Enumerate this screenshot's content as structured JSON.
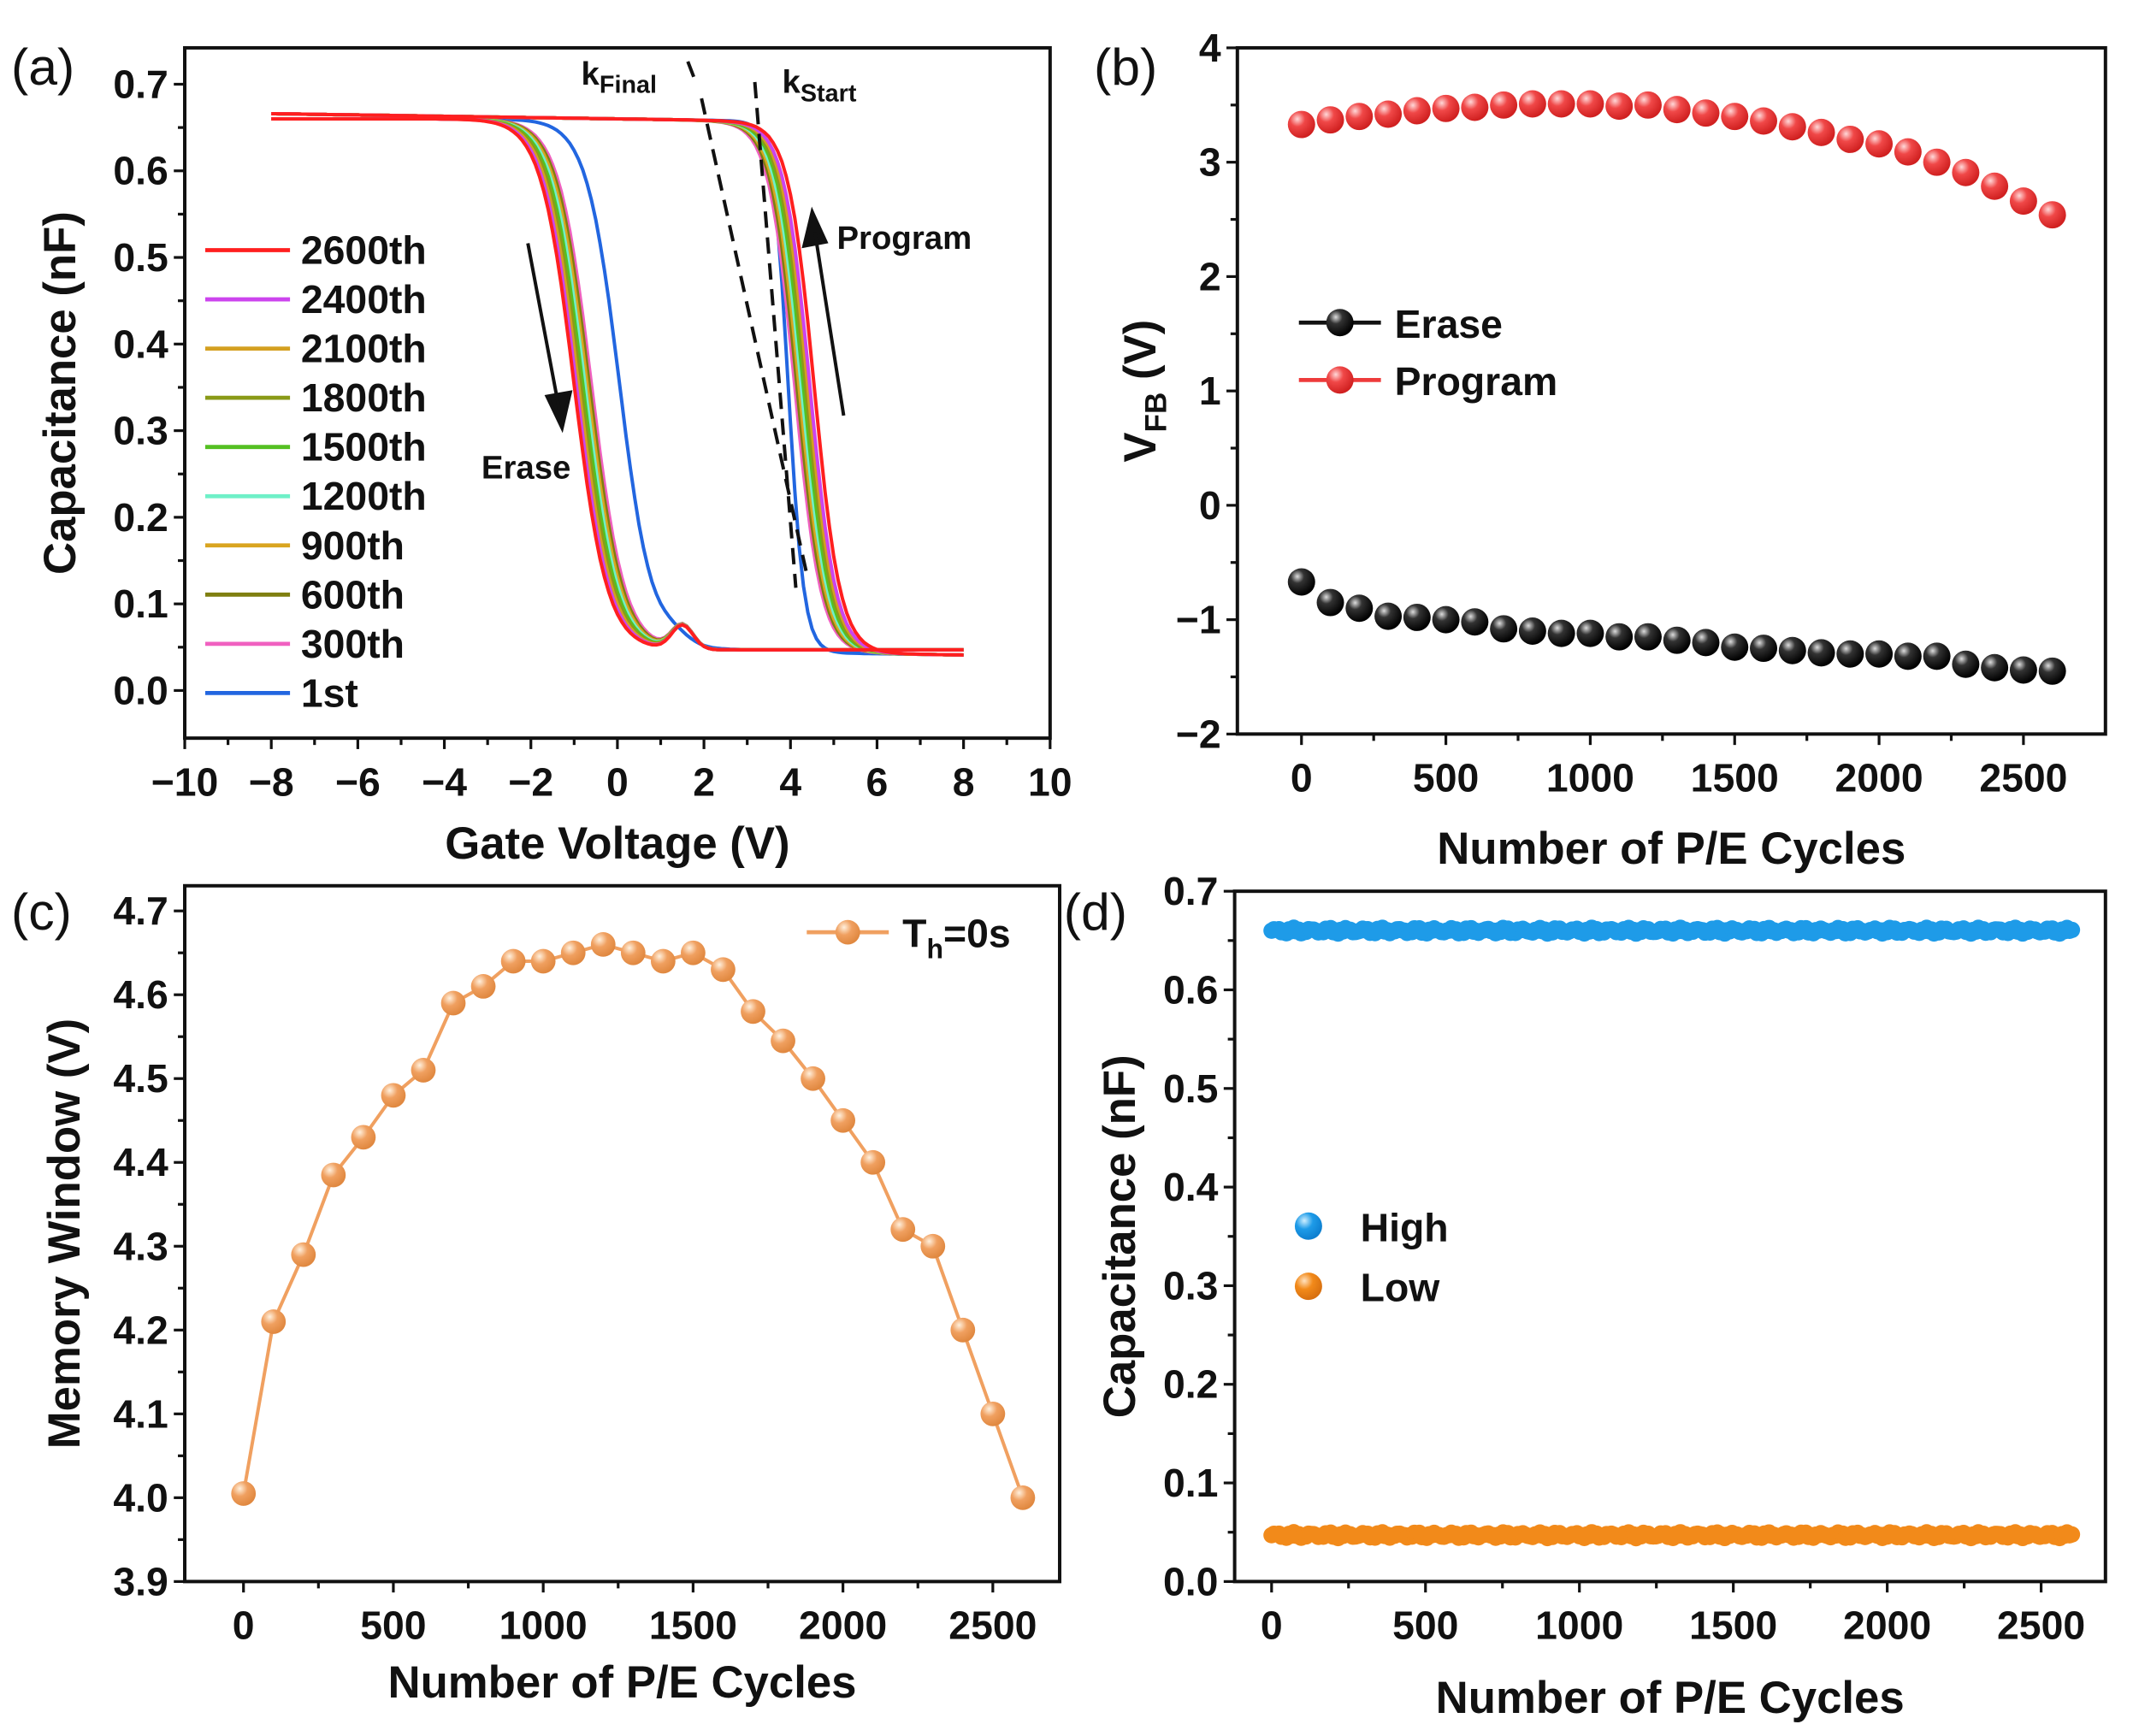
{
  "chart_data": [
    {
      "panel": "(a)",
      "type": "line",
      "xlabel": "Gate Voltage (V)",
      "ylabel": "Capacitance (nF)",
      "xlim": [
        -10,
        10
      ],
      "ylim": [
        -0.055,
        0.742
      ],
      "xticks": [
        "−10",
        "−8",
        "−6",
        "−4",
        "−2",
        "0",
        "2",
        "4",
        "6",
        "8",
        "10"
      ],
      "xtick_values": [
        -10,
        -8,
        -6,
        -4,
        -2,
        0,
        2,
        4,
        6,
        8,
        10
      ],
      "yticks": [
        "0.0",
        "0.1",
        "0.2",
        "0.3",
        "0.4",
        "0.5",
        "0.6",
        "0.7"
      ],
      "ytick_values": [
        0,
        0.1,
        0.2,
        0.3,
        0.4,
        0.5,
        0.6,
        0.7
      ],
      "sweep_range": [
        -8,
        8
      ],
      "c_max": 0.66,
      "c_min": 0.047,
      "series": [
        {
          "name": "2600th",
          "color": "#ff1f1f",
          "erase_transition_v": -1.0,
          "program_transition_v": 4.55
        },
        {
          "name": "2400th",
          "color": "#cc44ee",
          "erase_transition_v": -0.95,
          "program_transition_v": 4.45
        },
        {
          "name": "2100th",
          "color": "#d4a020",
          "erase_transition_v": -0.9,
          "program_transition_v": 4.4
        },
        {
          "name": "1800th",
          "color": "#8a9a18",
          "erase_transition_v": -0.85,
          "program_transition_v": 4.35
        },
        {
          "name": "1500th",
          "color": "#55c022",
          "erase_transition_v": -0.8,
          "program_transition_v": 4.3
        },
        {
          "name": "1200th",
          "color": "#6ff0c8",
          "erase_transition_v": -0.75,
          "program_transition_v": 4.25
        },
        {
          "name": "900th",
          "color": "#d9a520",
          "erase_transition_v": -0.7,
          "program_transition_v": 4.2
        },
        {
          "name": "600th",
          "color": "#7f7f10",
          "erase_transition_v": -0.65,
          "program_transition_v": 4.15
        },
        {
          "name": "300th",
          "color": "#f060c0",
          "erase_transition_v": -0.6,
          "program_transition_v": 4.1
        },
        {
          "name": "1st",
          "color": "#2266e0",
          "erase_transition_v": 0.05,
          "program_transition_v": 3.95
        }
      ],
      "annotations": {
        "k_final": "k",
        "k_final_sub": "Final",
        "k_start": "k",
        "k_start_sub": "Start",
        "program": "Program",
        "erase": "Erase"
      }
    },
    {
      "panel": "(b)",
      "type": "scatter",
      "xlabel": "Number of P/E Cycles",
      "ylabel": "V",
      "ylabel_sub": "FB",
      "ylabel_unit": " (V)",
      "xlim": [
        -222,
        2784
      ],
      "ylim": [
        -2,
        4
      ],
      "xticks": [
        "0",
        "500",
        "1000",
        "1500",
        "2000",
        "2500"
      ],
      "xtick_values": [
        0,
        500,
        1000,
        1500,
        2000,
        2500
      ],
      "yticks": [
        "−2",
        "−1",
        "0",
        "1",
        "2",
        "3",
        "4"
      ],
      "ytick_values": [
        -2,
        -1,
        0,
        1,
        2,
        3,
        4
      ],
      "x": [
        0,
        100,
        200,
        300,
        400,
        500,
        600,
        700,
        800,
        900,
        1000,
        1100,
        1200,
        1300,
        1400,
        1500,
        1600,
        1700,
        1800,
        1900,
        2000,
        2100,
        2200,
        2300,
        2400,
        2500,
        2600
      ],
      "series": [
        {
          "name": "Erase",
          "color": "#111111",
          "values": [
            -0.67,
            -0.85,
            -0.9,
            -0.97,
            -0.98,
            -1.0,
            -1.02,
            -1.08,
            -1.1,
            -1.12,
            -1.12,
            -1.15,
            -1.15,
            -1.18,
            -1.2,
            -1.24,
            -1.25,
            -1.27,
            -1.29,
            -1.3,
            -1.3,
            -1.32,
            -1.32,
            -1.39,
            -1.42,
            -1.44,
            -1.45
          ]
        },
        {
          "name": "Program",
          "color": "#ee3b3b",
          "values": [
            3.33,
            3.37,
            3.4,
            3.42,
            3.45,
            3.47,
            3.48,
            3.5,
            3.51,
            3.51,
            3.51,
            3.49,
            3.5,
            3.46,
            3.43,
            3.4,
            3.36,
            3.31,
            3.26,
            3.2,
            3.16,
            3.09,
            3.0,
            2.91,
            2.79,
            2.66,
            2.54
          ]
        }
      ]
    },
    {
      "panel": "(c)",
      "type": "line",
      "xlabel": "Number of P/E Cycles",
      "ylabel": "Memory Window (V)",
      "xlim": [
        -196,
        2723
      ],
      "ylim": [
        3.9,
        4.73
      ],
      "xticks": [
        "0",
        "500",
        "1000",
        "1500",
        "2000",
        "2500"
      ],
      "xtick_values": [
        0,
        500,
        1000,
        1500,
        2000,
        2500
      ],
      "yticks": [
        "3.9",
        "4.0",
        "4.1",
        "4.2",
        "4.3",
        "4.4",
        "4.5",
        "4.6",
        "4.7"
      ],
      "ytick_values": [
        3.9,
        4.0,
        4.1,
        4.2,
        4.3,
        4.4,
        4.5,
        4.6,
        4.7
      ],
      "x": [
        0,
        100,
        200,
        300,
        400,
        500,
        600,
        700,
        800,
        900,
        1000,
        1100,
        1200,
        1300,
        1400,
        1500,
        1600,
        1700,
        1800,
        1900,
        2000,
        2100,
        2200,
        2300,
        2400,
        2500,
        2600
      ],
      "series": [
        {
          "name": "T",
          "name_sub": "h",
          "name_rest": "=0s",
          "color": "#f0a060",
          "values": [
            4.005,
            4.21,
            4.29,
            4.385,
            4.43,
            4.48,
            4.51,
            4.59,
            4.61,
            4.64,
            4.64,
            4.65,
            4.66,
            4.65,
            4.64,
            4.65,
            4.63,
            4.58,
            4.545,
            4.5,
            4.45,
            4.4,
            4.32,
            4.3,
            4.2,
            4.1,
            4.0
          ]
        }
      ]
    },
    {
      "panel": "(d)",
      "type": "scatter",
      "xlabel": "Number of P/E Cycles",
      "ylabel": "Capacitance (nF)",
      "xlim": [
        -120,
        2709
      ],
      "ylim": [
        0,
        0.7
      ],
      "xticks": [
        "0",
        "500",
        "1000",
        "1500",
        "2000",
        "2500"
      ],
      "xtick_values": [
        0,
        500,
        1000,
        1500,
        2000,
        2500
      ],
      "yticks": [
        "0.0",
        "0.1",
        "0.2",
        "0.3",
        "0.4",
        "0.5",
        "0.6",
        "0.7"
      ],
      "ytick_values": [
        0,
        0.1,
        0.2,
        0.3,
        0.4,
        0.5,
        0.6,
        0.7
      ],
      "cycle_range": [
        0,
        2600
      ],
      "series": [
        {
          "name": "High",
          "color": "#1e9be8",
          "value": 0.66
        },
        {
          "name": "Low",
          "color": "#f28a1a",
          "value": 0.047
        }
      ]
    }
  ]
}
